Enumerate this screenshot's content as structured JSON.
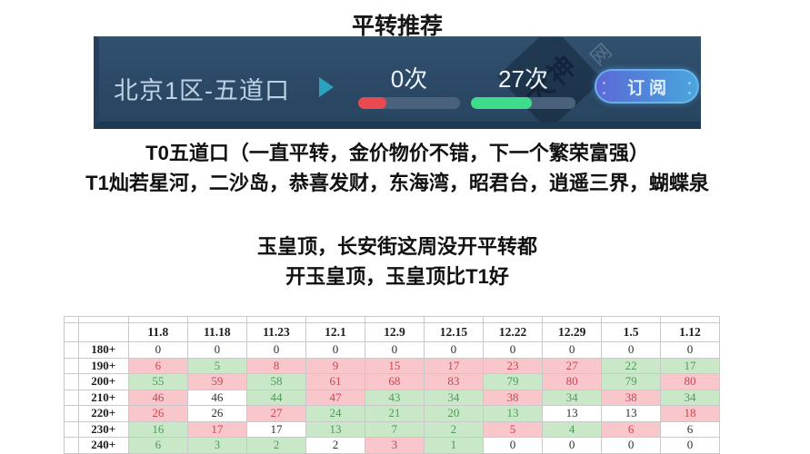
{
  "page_title": "平转推荐",
  "banner": {
    "server_name": "北京1区-五道口",
    "left_stat": {
      "count": "0次",
      "fill_percent": 28,
      "fill_color": "#e84a4f"
    },
    "right_stat": {
      "count": "27次",
      "fill_percent": 58,
      "fill_color": "#3fdc8c"
    },
    "subscribe_label": "订阅",
    "watermark_text": "大神",
    "watermark_corner_text": "网",
    "background_color": "#2a4764"
  },
  "notes": {
    "line1": "T0五道口（一直平转，金价物价不错，下一个繁荣富强）",
    "line2": "T1灿若星河，二沙岛，恭喜发财，东海湾，昭君台，逍遥三界，蝴蝶泉",
    "line3": "玉皇顶，长安街这周没开平转都",
    "line4": "开玉皇顶，玉皇顶比T1好"
  },
  "table": {
    "columns": [
      "11.8",
      "11.18",
      "11.23",
      "12.1",
      "12.9",
      "12.15",
      "12.22",
      "12.29",
      "1.5",
      "1.12"
    ],
    "rows": [
      {
        "label": "180+",
        "values": [
          "0",
          "0",
          "0",
          "0",
          "0",
          "0",
          "0",
          "0",
          "0",
          "0"
        ],
        "states": [
          "w",
          "w",
          "w",
          "w",
          "w",
          "w",
          "w",
          "w",
          "w",
          "w"
        ]
      },
      {
        "label": "190+",
        "values": [
          "6",
          "5",
          "8",
          "9",
          "15",
          "17",
          "23",
          "27",
          "22",
          "17"
        ],
        "states": [
          "r",
          "g",
          "r",
          "r",
          "r",
          "r",
          "r",
          "r",
          "g",
          "g"
        ]
      },
      {
        "label": "200+",
        "values": [
          "55",
          "59",
          "58",
          "61",
          "68",
          "83",
          "79",
          "80",
          "79",
          "80"
        ],
        "states": [
          "g",
          "r",
          "g",
          "r",
          "r",
          "r",
          "g",
          "r",
          "g",
          "r"
        ]
      },
      {
        "label": "210+",
        "values": [
          "46",
          "46",
          "44",
          "47",
          "43",
          "34",
          "38",
          "34",
          "38",
          "34"
        ],
        "states": [
          "r",
          "w",
          "g",
          "r",
          "g",
          "g",
          "r",
          "g",
          "r",
          "g"
        ]
      },
      {
        "label": "220+",
        "values": [
          "26",
          "26",
          "27",
          "24",
          "21",
          "20",
          "13",
          "13",
          "13",
          "18"
        ],
        "states": [
          "r",
          "w",
          "r",
          "g",
          "g",
          "g",
          "g",
          "w",
          "w",
          "r"
        ]
      },
      {
        "label": "230+",
        "values": [
          "16",
          "17",
          "17",
          "13",
          "7",
          "2",
          "5",
          "4",
          "6",
          "6"
        ],
        "states": [
          "g",
          "r",
          "w",
          "g",
          "g",
          "g",
          "r",
          "g",
          "r",
          "w"
        ]
      },
      {
        "label": "240+",
        "values": [
          "6",
          "3",
          "2",
          "2",
          "3",
          "1",
          "0",
          "0",
          "0",
          "0"
        ],
        "states": [
          "g",
          "g",
          "g",
          "w",
          "r",
          "g",
          "w",
          "w",
          "w",
          "w"
        ]
      }
    ],
    "partial_bottom_states": [
      "w",
      "g",
      "w",
      "w",
      "w",
      "w",
      "w",
      "w",
      "w",
      "w"
    ],
    "colors": {
      "red_bg": "#f8c6cb",
      "red_text": "#cd4550",
      "green_bg": "#c8e8c8",
      "green_text": "#4e9b57",
      "grid": "#c9c9c9"
    }
  }
}
